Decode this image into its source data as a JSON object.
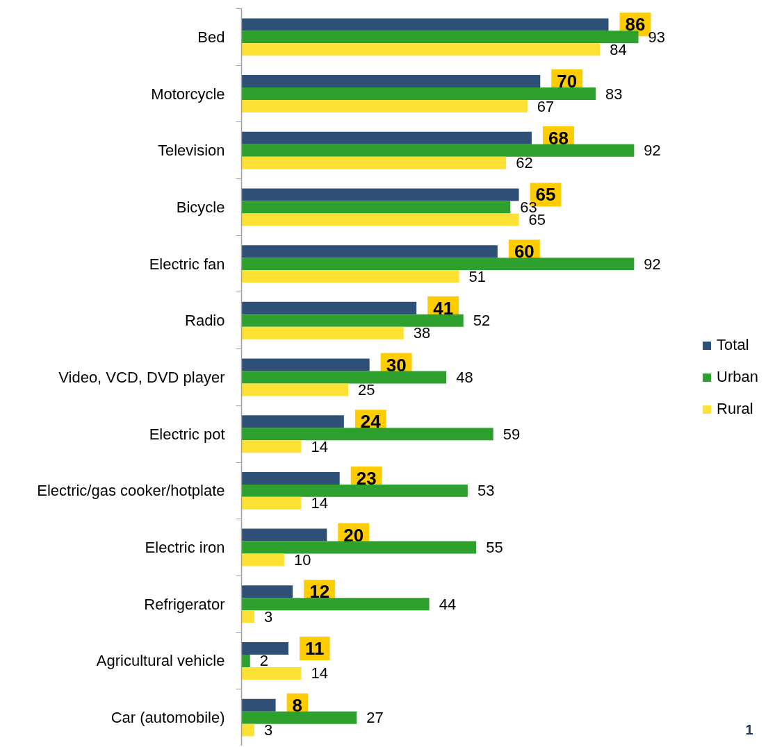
{
  "chart_data": {
    "type": "bar",
    "orientation": "horizontal",
    "categories": [
      "Bed",
      "Motorcycle",
      "Television",
      "Bicycle",
      "Electric fan",
      "Radio",
      "Video, VCD, DVD player",
      "Electric pot",
      "Electric/gas cooker/hotplate",
      "Electric iron",
      "Refrigerator",
      "Agricultural vehicle",
      "Car (automobile)"
    ],
    "series": [
      {
        "name": "Total",
        "color": "#2e5076",
        "values": [
          86,
          70,
          68,
          65,
          60,
          41,
          30,
          24,
          23,
          20,
          12,
          11,
          8
        ]
      },
      {
        "name": "Urban",
        "color": "#2ea02d",
        "values": [
          93,
          83,
          92,
          63,
          92,
          52,
          48,
          59,
          53,
          55,
          44,
          2,
          27
        ]
      },
      {
        "name": "Rural",
        "color": "#fde135",
        "values": [
          84,
          67,
          62,
          65,
          51,
          38,
          25,
          14,
          14,
          10,
          3,
          14,
          3
        ]
      }
    ],
    "data_labels": true,
    "legend": "right",
    "tick_labels": "y",
    "annotations": [
      "1"
    ]
  }
}
